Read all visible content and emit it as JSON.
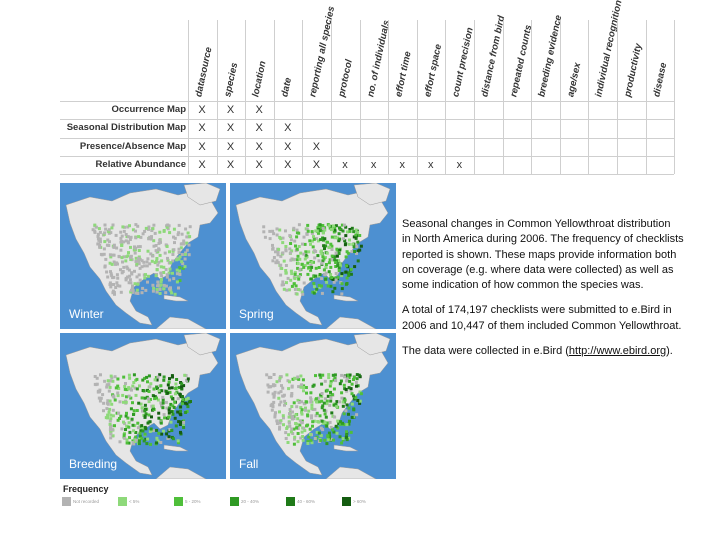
{
  "matrix": {
    "columns": [
      "datasource",
      "species",
      "location",
      "date",
      "reporting all species",
      "protocol",
      "no. of individuals",
      "effort time",
      "effort space",
      "count precision",
      "distance from bird",
      "repeated counts",
      "breeding evidence",
      "age/sex",
      "individual recognition",
      "productivity",
      "disease"
    ],
    "rows": [
      {
        "label": "Occurrence Map",
        "marks": [
          "X",
          "X",
          "X"
        ]
      },
      {
        "label": "Seasonal Distribution Map",
        "marks": [
          "X",
          "X",
          "X",
          "X"
        ]
      },
      {
        "label": "Presence/Absence Map",
        "marks": [
          "X",
          "X",
          "X",
          "X",
          "X"
        ]
      },
      {
        "label": "Relative Abundance",
        "marks": [
          "X",
          "X",
          "X",
          "X",
          "X",
          "x",
          "x",
          "x",
          "x",
          "x"
        ]
      }
    ]
  },
  "maps": [
    {
      "label": "Winter",
      "intensity": 0.25
    },
    {
      "label": "Spring",
      "intensity": 0.8
    },
    {
      "label": "Breeding",
      "intensity": 1.0
    },
    {
      "label": "Fall",
      "intensity": 0.7
    }
  ],
  "legend": {
    "title": "Frequency",
    "items": [
      {
        "text": "Not recorded",
        "color": "#b3b3b3"
      },
      {
        "text": "< 5%",
        "color": "#8ed97a"
      },
      {
        "text": "5 - 20%",
        "color": "#4fbf3a"
      },
      {
        "text": "20 - 40%",
        "color": "#2f9a24"
      },
      {
        "text": "40 - 60%",
        "color": "#1f7a18"
      },
      {
        "text": "> 60%",
        "color": "#145c10"
      }
    ]
  },
  "description": {
    "p1": "Seasonal changes in Common Yellowthroat distribution\n in North America during 2006. The frequency of checklists\n reported is shown. These maps provide information both\non coverage (e.g. where data were collected) as well as\nsome indication of how common the species was.",
    "p2": "A total of 174,197 checklists were submitted to e.Bird in\n2006 and 10,447 of them included Common Yellowthroat.",
    "p3_prefix": "The data were collected in e.Bird (",
    "p3_link": "http://www.ebird.org",
    "p3_suffix": ")."
  },
  "colors": {
    "water": "#4d90d1",
    "land": "#e6e6e6",
    "grid": "#cfcfcf"
  }
}
